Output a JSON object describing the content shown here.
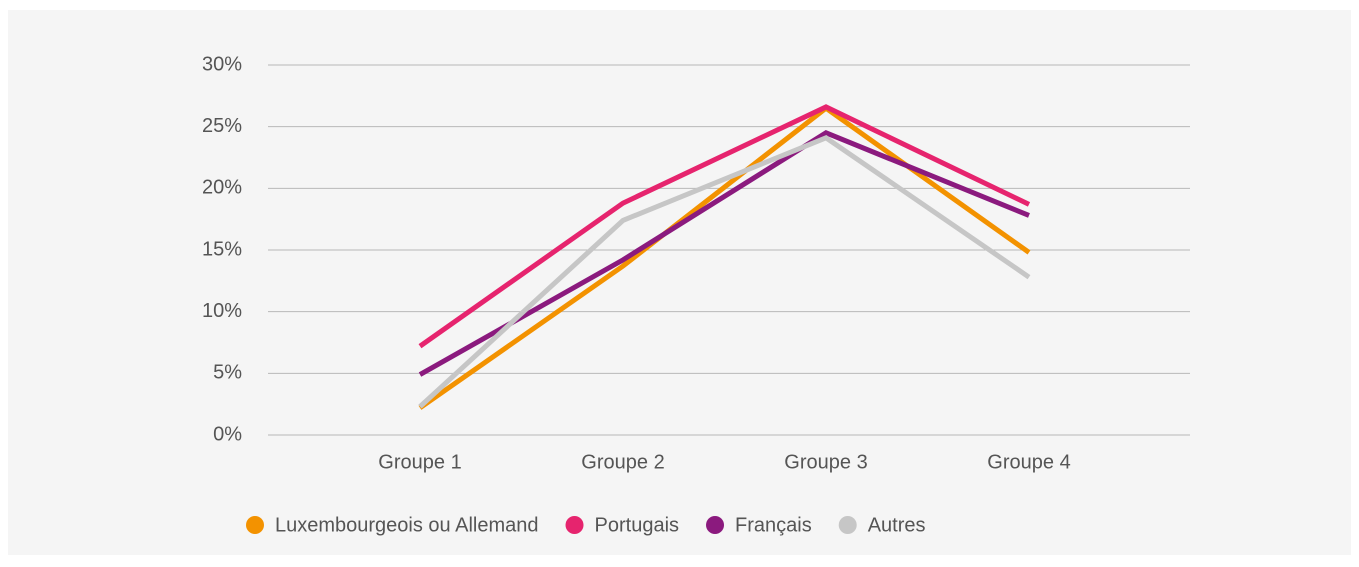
{
  "chart_data": {
    "type": "line",
    "categories": [
      "Groupe 1",
      "Groupe 2",
      "Groupe 3",
      "Groupe 4"
    ],
    "series": [
      {
        "name": "Luxembourgeois ou Allemand",
        "color": "#f39200",
        "values": [
          2.2,
          13.7,
          26.5,
          14.8
        ]
      },
      {
        "name": "Portugais",
        "color": "#e6246e",
        "values": [
          7.2,
          18.8,
          26.6,
          18.7
        ]
      },
      {
        "name": "Français",
        "color": "#8b1a7e",
        "values": [
          4.9,
          14.2,
          24.5,
          17.8
        ]
      },
      {
        "name": "Autres",
        "color": "#c6c6c6",
        "values": [
          2.3,
          17.4,
          24.1,
          12.8
        ]
      }
    ],
    "ylim": [
      0,
      30
    ],
    "yticks": [
      {
        "value": 0,
        "label": "0%"
      },
      {
        "value": 5,
        "label": "5%"
      },
      {
        "value": 10,
        "label": "10%"
      },
      {
        "value": 15,
        "label": "15%"
      },
      {
        "value": 20,
        "label": "20%"
      },
      {
        "value": 25,
        "label": "25%"
      },
      {
        "value": 30,
        "label": "30%"
      }
    ],
    "grid": true,
    "legend": "bottom"
  }
}
